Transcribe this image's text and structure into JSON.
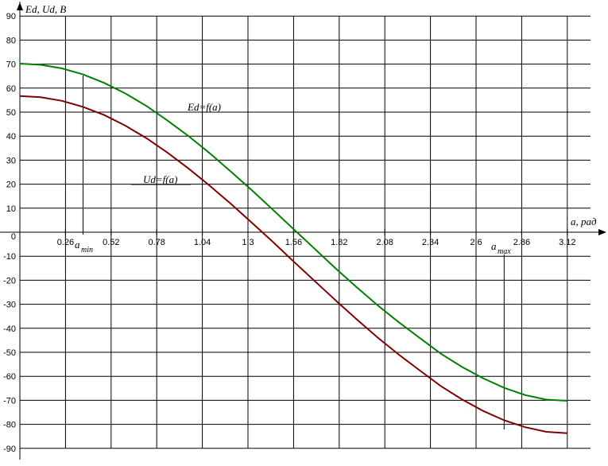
{
  "chart_data": {
    "type": "line",
    "ylabel": "Ed, Ud, B",
    "xlabel": "a, рад",
    "origin_label": "0",
    "xlim": [
      0,
      3.12
    ],
    "ylim": [
      -90,
      90
    ],
    "x_ticks": [
      "0.26",
      "0.52",
      "0.78",
      "1.04",
      "1.3",
      "1.56",
      "1.82",
      "2.08",
      "2.34",
      "2.6",
      "2.86",
      "3.12"
    ],
    "y_ticks": [
      "90",
      "80",
      "70",
      "60",
      "50",
      "40",
      "30",
      "20",
      "10",
      "-10",
      "-20",
      "-30",
      "-40",
      "-50",
      "-60",
      "-70",
      "-80",
      "-90"
    ],
    "grid": true,
    "series": [
      {
        "name": "Ed=f(a)",
        "color": "#008000",
        "x": [
          0,
          0.12,
          0.24,
          0.36,
          0.48,
          0.6,
          0.72,
          0.84,
          0.96,
          1.08,
          1.2,
          1.32,
          1.44,
          1.56,
          1.68,
          1.8,
          1.92,
          2.04,
          2.16,
          2.28,
          2.4,
          2.52,
          2.64,
          2.76,
          2.88,
          3.0,
          3.12
        ],
        "y": [
          70.2,
          69.7,
          68.2,
          65.7,
          62.2,
          57.8,
          52.6,
          46.6,
          40.1,
          33.0,
          25.4,
          17.6,
          9.5,
          1.3,
          -6.9,
          -15.1,
          -22.9,
          -30.5,
          -37.5,
          -44.1,
          -50.6,
          -56.1,
          -60.8,
          -64.8,
          -67.8,
          -69.7,
          -70.2
        ]
      },
      {
        "name": "Ud=f(a)",
        "color": "#800000",
        "x": [
          0,
          0.12,
          0.24,
          0.36,
          0.48,
          0.6,
          0.72,
          0.84,
          0.96,
          1.08,
          1.2,
          1.32,
          1.44,
          1.56,
          1.68,
          1.8,
          1.92,
          2.04,
          2.16,
          2.28,
          2.4,
          2.52,
          2.64,
          2.76,
          2.88,
          3.0,
          3.12
        ],
        "y": [
          56.7,
          56.2,
          54.7,
          52.2,
          48.8,
          44.4,
          39.2,
          33.2,
          26.6,
          19.5,
          12.0,
          4.1,
          -3.9,
          -12.2,
          -20.3,
          -28.4,
          -36.3,
          -43.9,
          -51.0,
          -57.6,
          -64.1,
          -69.6,
          -74.4,
          -78.3,
          -81.2,
          -83.1,
          -83.7
        ]
      }
    ],
    "markers": [
      {
        "label": "a",
        "subscript": "min",
        "x": 0.36
      },
      {
        "label": "a",
        "subscript": "max",
        "x": 2.76
      }
    ]
  }
}
